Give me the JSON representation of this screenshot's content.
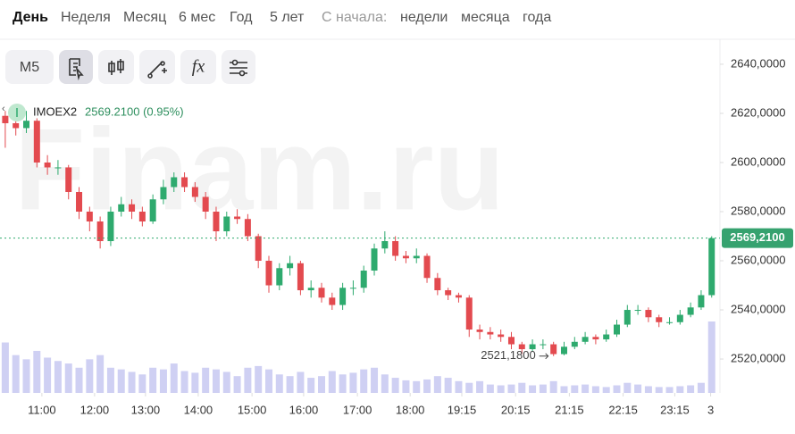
{
  "tabs": [
    "День",
    "Неделя",
    "Месяц",
    "6 мес",
    "Год",
    "5 лет"
  ],
  "since_label": "С начала:",
  "since_tabs": [
    "недели",
    "месяца",
    "года"
  ],
  "toolbar": {
    "interval": "M5",
    "function": "fx"
  },
  "chart_data": {
    "type": "candlestick",
    "watermark": "Finam.ru",
    "name": "IMOEX2",
    "last": "2569.2100 (0.95%)",
    "up_color": "#2eaa6e",
    "down_color": "#e34a4f",
    "volume_color": "#cfd0f3",
    "open": [
      2619,
      2616,
      2614,
      2617,
      2600,
      2598,
      2598,
      2588,
      2580,
      2576,
      2568,
      2580,
      2583,
      2580,
      2576,
      2585,
      2590,
      2594,
      2590,
      2586,
      2580,
      2572,
      2578,
      2577,
      2570,
      2560,
      2550,
      2557,
      2559,
      2548,
      2549,
      2545,
      2542,
      2549,
      2549,
      2556,
      2565,
      2568,
      2562,
      2561,
      2562,
      2553,
      2548,
      2546,
      2545,
      2532,
      2531,
      2530,
      2529,
      2526,
      2524,
      2526,
      2526,
      2522,
      2525,
      2527,
      2529,
      2528,
      2530,
      2534,
      2540,
      2540,
      2537,
      2535,
      2535,
      2538,
      2541,
      2546
    ],
    "high": [
      2621,
      2618,
      2621,
      2618,
      2603,
      2601,
      2599,
      2590,
      2582,
      2578,
      2582,
      2586,
      2585,
      2582,
      2587,
      2593,
      2596,
      2596,
      2592,
      2588,
      2582,
      2580,
      2581,
      2579,
      2571,
      2562,
      2559,
      2562,
      2560,
      2552,
      2551,
      2547,
      2551,
      2552,
      2558,
      2567,
      2572,
      2570,
      2564,
      2565,
      2563,
      2555,
      2549,
      2547,
      2546,
      2534,
      2533,
      2532,
      2531,
      2527,
      2528,
      2528,
      2527,
      2527,
      2529,
      2531,
      2530,
      2532,
      2536,
      2542,
      2542,
      2541,
      2538,
      2537,
      2540,
      2543,
      2548,
      2570
    ],
    "low": [
      2606,
      2611,
      2612,
      2598,
      2595,
      2595,
      2585,
      2577,
      2572,
      2565,
      2566,
      2578,
      2577,
      2574,
      2575,
      2583,
      2588,
      2588,
      2584,
      2577,
      2568,
      2570,
      2575,
      2568,
      2557,
      2547,
      2548,
      2554,
      2546,
      2545,
      2543,
      2540,
      2540,
      2546,
      2547,
      2554,
      2563,
      2560,
      2559,
      2559,
      2551,
      2546,
      2544,
      2543,
      2529,
      2528,
      2528,
      2527,
      2524,
      2522,
      2523,
      2524,
      2521.18,
      2521.5,
      2524,
      2526,
      2526,
      2527,
      2529,
      2533,
      2538,
      2535,
      2533,
      2534,
      2534,
      2537,
      2540,
      2545
    ],
    "close": [
      2616,
      2614,
      2617,
      2600,
      2598,
      2598,
      2588,
      2580,
      2576,
      2568,
      2580,
      2583,
      2580,
      2576,
      2585,
      2590,
      2594,
      2590,
      2586,
      2580,
      2572,
      2578,
      2577,
      2570,
      2560,
      2550,
      2557,
      2559,
      2548,
      2549,
      2545,
      2542,
      2549,
      2549,
      2556,
      2565,
      2568,
      2562,
      2561,
      2562,
      2553,
      2548,
      2546,
      2545,
      2532,
      2531,
      2530,
      2529,
      2526,
      2524,
      2526,
      2526,
      2522,
      2525,
      2527,
      2529,
      2528,
      2530,
      2534,
      2540,
      2540,
      2537,
      2535,
      2535,
      2538,
      2541,
      2546,
      2569.21
    ],
    "volume": [
      60,
      45,
      40,
      50,
      42,
      38,
      35,
      30,
      40,
      45,
      30,
      28,
      25,
      22,
      30,
      28,
      35,
      26,
      24,
      30,
      28,
      25,
      20,
      30,
      32,
      28,
      22,
      20,
      25,
      18,
      20,
      26,
      22,
      24,
      28,
      30,
      22,
      18,
      15,
      14,
      16,
      20,
      18,
      14,
      12,
      14,
      10,
      9,
      10,
      12,
      9,
      10,
      14,
      8,
      9,
      10,
      8,
      7,
      9,
      12,
      10,
      8,
      7,
      7,
      8,
      9,
      12,
      85
    ],
    "ylim": [
      2506.2,
      2649.8
    ],
    "yticks": [
      {
        "value": 2520,
        "label": "2520,0000"
      },
      {
        "value": 2540,
        "label": "2540,0000"
      },
      {
        "value": 2560,
        "label": "2560,0000"
      },
      {
        "value": 2580,
        "label": "2580,0000"
      },
      {
        "value": 2600,
        "label": "2600,0000"
      },
      {
        "value": 2620,
        "label": "2620,0000"
      },
      {
        "value": 2640,
        "label": "2640,0000"
      }
    ],
    "xlim": [
      -0.5,
      67.7
    ],
    "xticks": [
      {
        "value": 3.47,
        "label": "11:00"
      },
      {
        "value": 8.47,
        "label": "12:00"
      },
      {
        "value": 13.3,
        "label": "13:00"
      },
      {
        "value": 18.3,
        "label": "14:00"
      },
      {
        "value": 23.4,
        "label": "15:00"
      },
      {
        "value": 28.3,
        "label": "16:00"
      },
      {
        "value": 33.4,
        "label": "17:00"
      },
      {
        "value": 38.4,
        "label": "18:00"
      },
      {
        "value": 43.3,
        "label": "19:15"
      },
      {
        "value": 48.4,
        "label": "20:15"
      },
      {
        "value": 53.5,
        "label": "21:15"
      },
      {
        "value": 58.6,
        "label": "22:15"
      },
      {
        "value": 63.5,
        "label": "23:15"
      },
      {
        "value": 66.9,
        "label": "3"
      }
    ],
    "price_line": {
      "value": 2569.21,
      "label": "2569,2100"
    },
    "min_label": {
      "value": 2521.18,
      "label": "2521,1800"
    }
  }
}
